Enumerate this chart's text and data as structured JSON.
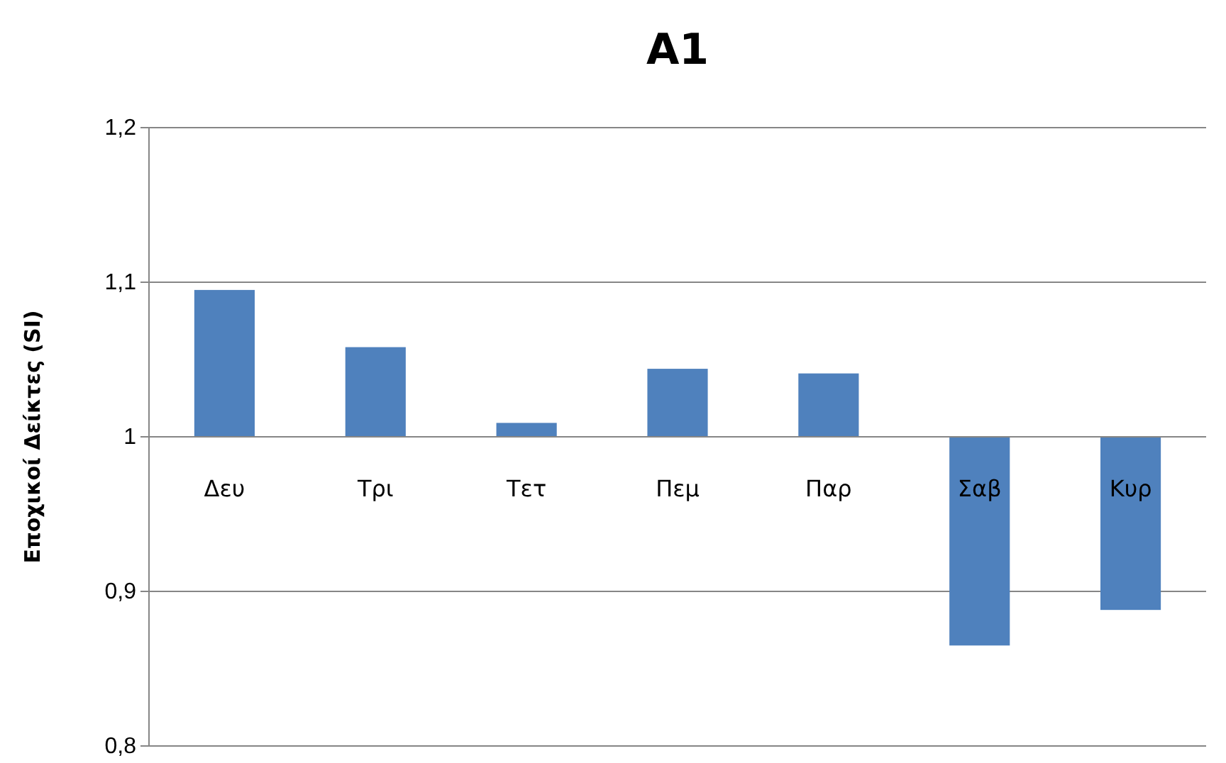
{
  "chart_data": {
    "type": "bar",
    "title": "A1",
    "ylabel": "Εποχικοί Δείκτες (SI)",
    "categories": [
      "Δευ",
      "Τρι",
      "Τετ",
      "Πεμ",
      "Παρ",
      "Σαβ",
      "Κυρ"
    ],
    "base": [
      1,
      1,
      1,
      1,
      1,
      1,
      1
    ],
    "values": [
      0.095,
      0.058,
      0.009,
      0.044,
      0.041,
      -0.135,
      -0.112
    ],
    "color": "#4f81bd",
    "ylim": [
      0.8,
      1.2
    ],
    "yticks": [
      {
        "value": 0.8,
        "label": "0,8"
      },
      {
        "value": 0.9,
        "label": "0,9"
      },
      {
        "value": 1,
        "label": "1"
      },
      {
        "value": 1.1,
        "label": "1,1"
      },
      {
        "value": 1.2,
        "label": "1,2"
      }
    ],
    "grid": "y"
  }
}
